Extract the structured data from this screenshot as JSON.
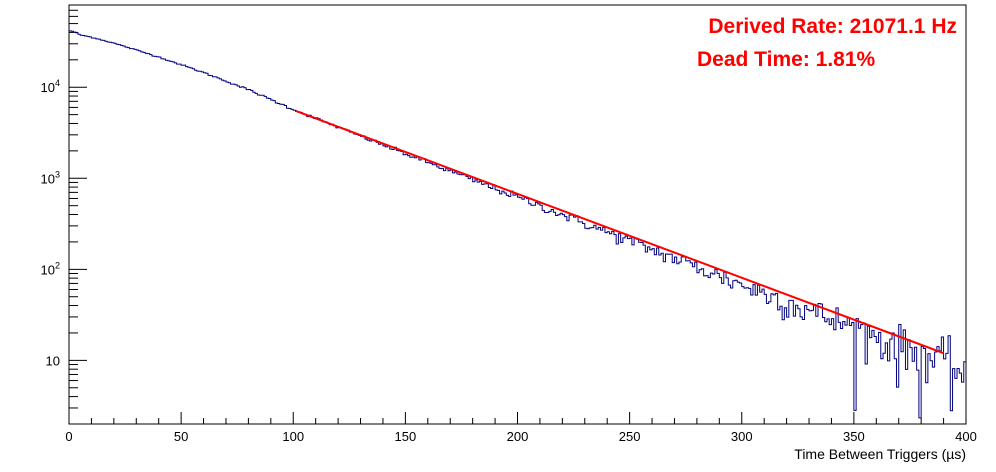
{
  "chart_data": {
    "type": "line",
    "title": "",
    "xlabel": "Time Between Triggers (µs)",
    "ylabel": "",
    "xlim": [
      0,
      400
    ],
    "ylim": [
      2,
      80000
    ],
    "y_scale": "log",
    "grid": false,
    "x_ticks": [
      "0",
      "50",
      "100",
      "150",
      "200",
      "250",
      "300",
      "350",
      "400"
    ],
    "y_ticks": [
      {
        "value": 10,
        "base": "10",
        "exp": ""
      },
      {
        "value": 100,
        "base": "10",
        "exp": "2"
      },
      {
        "value": 1000,
        "base": "10",
        "exp": "3"
      },
      {
        "value": 10000,
        "base": "10",
        "exp": "4"
      }
    ],
    "annotations": [
      {
        "text": "Derived Rate: 21071.1 Hz",
        "color": "#ff0000"
      },
      {
        "text": "Dead Time: 1.81%",
        "color": "#ff0000"
      }
    ],
    "series": [
      {
        "kind": "histogram",
        "color": "#000080",
        "x_range": [
          0,
          400
        ],
        "x_points": [
          0,
          3,
          5,
          10,
          20,
          40,
          60,
          80,
          100,
          150,
          200,
          250,
          300,
          350,
          400
        ],
        "y_points": [
          42000,
          40000,
          37500,
          35500,
          30500,
          21500,
          14500,
          9400,
          5700,
          1860,
          620,
          205,
          68,
          23,
          7.5
        ]
      },
      {
        "kind": "fit",
        "color": "#ff0000",
        "x": [
          101,
          390
        ],
        "y": [
          5500,
          12
        ]
      }
    ]
  }
}
